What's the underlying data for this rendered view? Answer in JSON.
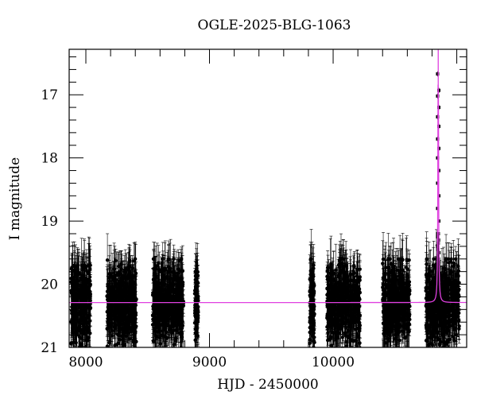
{
  "chart_data": {
    "type": "scatter",
    "title": "OGLE-2025-BLG-1063",
    "xlabel": "HJD - 2450000",
    "ylabel": "I magnitude",
    "xlim": [
      7865,
      11080
    ],
    "ylim": [
      21,
      16.28
    ],
    "y_inverted": true,
    "x_ticks": [
      8000,
      9000,
      10000
    ],
    "x_minor_step": 200,
    "y_ticks": [
      17,
      18,
      19,
      20,
      21
    ],
    "y_minor_step": 0.2,
    "grid": false,
    "legend": null,
    "colors": {
      "points": "#000000",
      "model": "#e040e0",
      "frame": "#000000"
    },
    "series": [
      {
        "name": "OGLE I-band photometry",
        "kind": "points_with_errorbars",
        "seasons": [
          {
            "x_range": [
              7880,
              8040
            ],
            "mag_range": [
              19.6,
              21.0
            ],
            "mean_mag": 20.3
          },
          {
            "x_range": [
              8170,
              8410
            ],
            "mag_range": [
              19.5,
              21.0
            ],
            "mean_mag": 20.3
          },
          {
            "x_range": [
              8540,
              8790
            ],
            "mag_range": [
              19.5,
              21.0
            ],
            "mean_mag": 20.3
          },
          {
            "x_range": [
              8880,
              8910
            ],
            "mag_range": [
              19.7,
              21.0
            ],
            "mean_mag": 20.3
          },
          {
            "x_range": [
              9810,
              9850
            ],
            "mag_range": [
              19.5,
              21.0
            ],
            "mean_mag": 20.3
          },
          {
            "x_range": [
              9950,
              10220
            ],
            "mag_range": [
              19.5,
              21.0
            ],
            "mean_mag": 20.3
          },
          {
            "x_range": [
              10400,
              10620
            ],
            "mag_range": [
              19.5,
              21.0
            ],
            "mean_mag": 20.3
          },
          {
            "x_range": [
              10750,
              11020
            ],
            "mag_range": [
              19.5,
              21.0
            ],
            "mean_mag": 20.3
          }
        ],
        "peak": {
          "x": 10850,
          "mag_min": 16.67,
          "points_mag": [
            16.67,
            16.93,
            17.02,
            17.2,
            17.35,
            17.5,
            17.7,
            17.85,
            18.0,
            18.2,
            18.4,
            18.6,
            18.8,
            19.0,
            19.2
          ]
        }
      },
      {
        "name": "microlensing model",
        "kind": "line",
        "baseline_mag": 20.29,
        "t0": 10850,
        "peak_mag": 16.0,
        "tE_visual_days": 6
      }
    ]
  }
}
